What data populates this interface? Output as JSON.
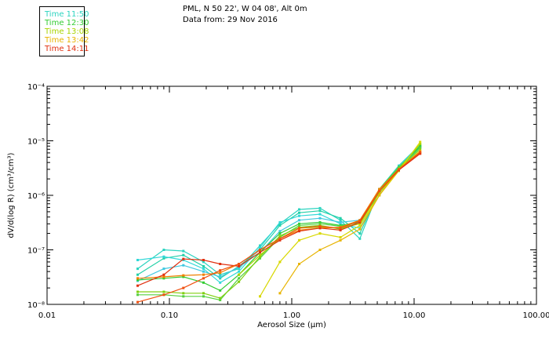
{
  "header": {
    "location": "PML, N 50 22', W 04 08', Alt 0m",
    "date_line": "Data from: 29 Nov 2016"
  },
  "legend": [
    {
      "label": "Time 11:50",
      "color": "#2dd4c0"
    },
    {
      "label": "Time 12:30",
      "color": "#33cc33"
    },
    {
      "label": "Time 13:08",
      "color": "#a8d400"
    },
    {
      "label": "Time 13:42",
      "color": "#e8b400"
    },
    {
      "label": "Time 14:11",
      "color": "#e03010"
    }
  ],
  "chart_data": {
    "type": "line",
    "title": "",
    "xlabel": "Aerosol Size (μm)",
    "ylabel": "dV/d(log R) (cm³/cm³)",
    "xscale": "log",
    "yscale": "log",
    "xlim": [
      0.01,
      100
    ],
    "ylim": [
      1e-08,
      0.0001
    ],
    "x_ticks": [
      "0.01",
      "0.10",
      "1.00",
      "10.00",
      "100.00"
    ],
    "y_ticks": [
      "10⁻⁸",
      "10⁻⁷",
      "10⁻⁶",
      "10⁻⁵",
      "10⁻⁴"
    ],
    "x": [
      0.055,
      0.09,
      0.13,
      0.19,
      0.26,
      0.37,
      0.55,
      0.8,
      1.15,
      1.7,
      2.5,
      3.6,
      5.2,
      7.5,
      11.2
    ],
    "series": [
      {
        "color": "#2dd4c0",
        "values": [
          4.5e-08,
          1e-07,
          9.5e-08,
          6e-08,
          3.5e-08,
          4.5e-08,
          1.2e-07,
          3e-07,
          5.5e-07,
          5.8e-07,
          3.5e-07,
          1.6e-07,
          1.3e-06,
          3.5e-06,
          8.5e-06
        ]
      },
      {
        "color": "#22d0a8",
        "values": [
          3.5e-08,
          7e-08,
          8e-08,
          5e-08,
          3e-08,
          5e-08,
          1e-07,
          2.8e-07,
          4.8e-07,
          5.2e-07,
          3.8e-07,
          2e-07,
          1.2e-06,
          3.3e-06,
          8e-06
        ]
      },
      {
        "color": "#30d8d8",
        "values": [
          6.5e-08,
          7.5e-08,
          6.5e-08,
          4.5e-08,
          2.5e-08,
          4e-08,
          1.1e-07,
          3.2e-07,
          4.2e-07,
          4.5e-07,
          3e-07,
          2.5e-07,
          1e-06,
          3e-06,
          7.5e-06
        ]
      },
      {
        "color": "#40c8e0",
        "values": [
          2.7e-08,
          4.5e-08,
          5.2e-08,
          4e-08,
          3.2e-08,
          4.8e-08,
          9e-08,
          2.2e-07,
          3.5e-07,
          3.8e-07,
          3.2e-07,
          3.5e-07,
          1.1e-06,
          3.2e-06,
          7.8e-06
        ]
      },
      {
        "color": "#33cc33",
        "values": [
          2.8e-08,
          3e-08,
          3.2e-08,
          2.5e-08,
          1.8e-08,
          3.5e-08,
          9e-08,
          2e-07,
          3e-07,
          3.2e-07,
          2.8e-07,
          3.2e-07,
          1.2e-06,
          3.2e-06,
          8e-06
        ]
      },
      {
        "color": "#55d040",
        "values": [
          1.5e-08,
          1.5e-08,
          1.4e-08,
          1.4e-08,
          1.2e-08,
          3e-08,
          7e-08,
          1.7e-07,
          2.8e-07,
          3e-07,
          2.7e-07,
          3.4e-07,
          1.3e-06,
          3.3e-06,
          7.5e-06
        ]
      },
      {
        "color": "#80d010",
        "values": [
          1.7e-08,
          1.7e-08,
          1.6e-08,
          1.6e-08,
          1.3e-08,
          2.6e-08,
          7.5e-08,
          1.8e-07,
          2.6e-07,
          2.8e-07,
          2.4e-07,
          3.2e-07,
          1.2e-06,
          3.1e-06,
          7e-06
        ]
      },
      {
        "color": "#a8d400",
        "values": [
          null,
          null,
          null,
          null,
          null,
          3.5e-08,
          8e-08,
          1.6e-07,
          2.5e-07,
          2.6e-07,
          2.5e-07,
          3e-07,
          1.1e-06,
          3e-06,
          8.8e-06
        ]
      },
      {
        "color": "#d8d800",
        "values": [
          null,
          null,
          null,
          null,
          null,
          null,
          1.4e-08,
          6e-08,
          1.5e-07,
          2e-07,
          1.7e-07,
          2.8e-07,
          1e-06,
          2.8e-06,
          9.5e-06
        ]
      },
      {
        "color": "#e8b400",
        "values": [
          null,
          null,
          null,
          null,
          null,
          null,
          null,
          1.6e-08,
          5.5e-08,
          1e-07,
          1.5e-07,
          2.4e-07,
          1e-06,
          3e-06,
          6.5e-06
        ]
      },
      {
        "color": "#f08000",
        "values": [
          3e-08,
          3.2e-08,
          3.4e-08,
          3.5e-08,
          3.8e-08,
          5.5e-08,
          1e-07,
          1.6e-07,
          2.3e-07,
          2.5e-07,
          2.6e-07,
          3.5e-07,
          1.3e-06,
          3e-06,
          6e-06
        ]
      },
      {
        "color": "#e03010",
        "values": [
          2.2e-08,
          3.5e-08,
          6.8e-08,
          6.5e-08,
          5.5e-08,
          5e-08,
          9e-08,
          1.5e-07,
          2.2e-07,
          2.5e-07,
          2.3e-07,
          3.2e-07,
          1.2e-06,
          2.9e-06,
          5.8e-06
        ]
      },
      {
        "color": "#f05010",
        "values": [
          1.1e-08,
          1.5e-08,
          2e-08,
          3e-08,
          4.2e-08,
          5.5e-08,
          1e-07,
          1.6e-07,
          2.5e-07,
          2.7e-07,
          2.5e-07,
          3.4e-07,
          1.2e-06,
          3e-06,
          6.2e-06
        ]
      }
    ]
  }
}
